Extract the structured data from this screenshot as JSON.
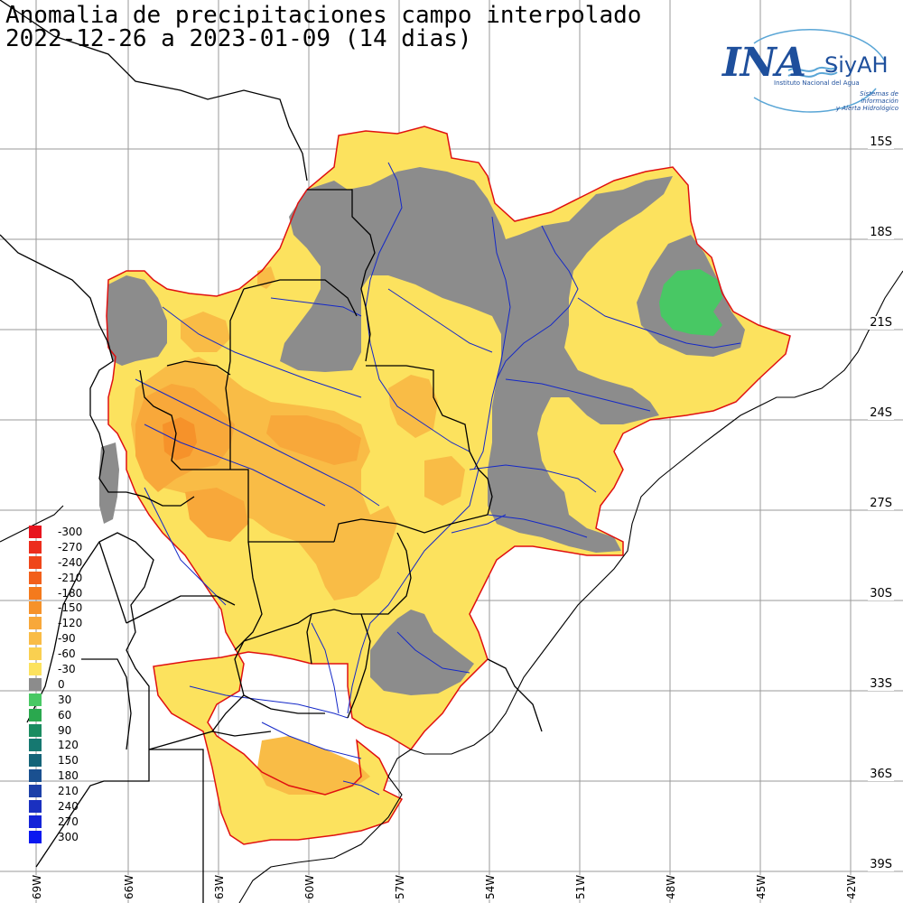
{
  "title": {
    "line1": "Anomalia de precipitaciones campo interpolado",
    "line2": "2022-12-26 a 2023-01-09 (14 dias)"
  },
  "logo": {
    "name": "INA",
    "product": "SiyAH",
    "subtitle": "Instituto Nacional del Agua",
    "tagline1": "Sistemas de información",
    "tagline2": "y Alerta Hidrológico"
  },
  "axes": {
    "latitude_labels": [
      "15S",
      "18S",
      "21S",
      "24S",
      "27S",
      "30S",
      "33S",
      "36S",
      "39S"
    ],
    "longitude_labels": [
      "69W",
      "66W",
      "63W",
      "60W",
      "57W",
      "54W",
      "51W",
      "48W",
      "45W",
      "42W"
    ]
  },
  "legend": {
    "entries": [
      {
        "label": "-300",
        "color": "#e8141e"
      },
      {
        "label": "-270",
        "color": "#ec2d1c"
      },
      {
        "label": "-240",
        "color": "#ef461a"
      },
      {
        "label": "-210",
        "color": "#f25f1a"
      },
      {
        "label": "-180",
        "color": "#f47a1c"
      },
      {
        "label": "-150",
        "color": "#f6922a"
      },
      {
        "label": "-120",
        "color": "#f8a83a"
      },
      {
        "label": "-90",
        "color": "#f9bc46"
      },
      {
        "label": "-60",
        "color": "#fad050"
      },
      {
        "label": "-30",
        "color": "#fce25e"
      },
      {
        "label": "0",
        "color": "#8c8c8c"
      },
      {
        "label": "30",
        "color": "#48c864"
      },
      {
        "label": "60",
        "color": "#2aa84e"
      },
      {
        "label": "90",
        "color": "#1a8c60"
      },
      {
        "label": "120",
        "color": "#157870"
      },
      {
        "label": "150",
        "color": "#146478"
      },
      {
        "label": "180",
        "color": "#1a5090"
      },
      {
        "label": "210",
        "color": "#1c40a8"
      },
      {
        "label": "240",
        "color": "#1a30c0"
      },
      {
        "label": "270",
        "color": "#1424d8"
      },
      {
        "label": "300",
        "color": "#0a18f0"
      }
    ]
  },
  "colors": {
    "basin_outline": "#e01010",
    "rivers": "#1428c8",
    "borders": "#000000",
    "grid": "#9a9a9a"
  }
}
